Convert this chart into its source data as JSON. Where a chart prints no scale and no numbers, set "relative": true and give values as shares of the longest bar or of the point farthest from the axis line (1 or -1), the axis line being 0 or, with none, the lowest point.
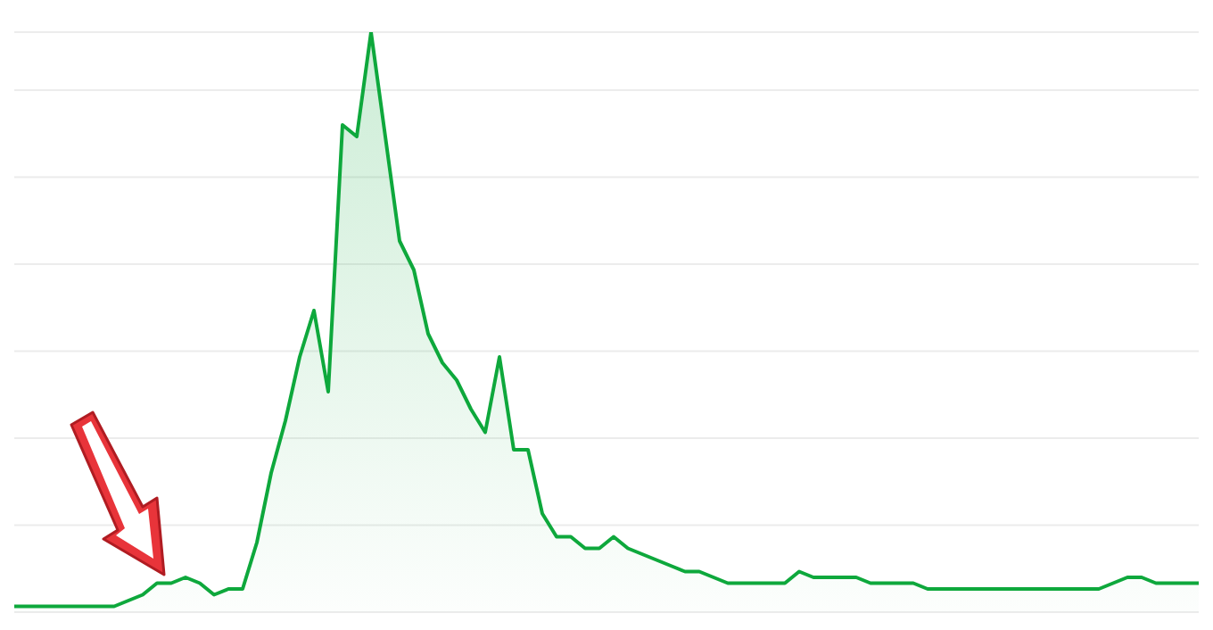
{
  "chart_data": {
    "type": "area",
    "relative": true,
    "grid": "y",
    "categories": [
      null,
      null,
      null,
      null,
      null,
      null,
      null,
      null,
      null,
      null,
      null,
      null,
      null,
      null,
      null,
      null,
      null,
      null,
      null,
      null,
      null,
      null,
      null,
      null,
      null,
      null,
      null,
      null,
      null,
      null,
      null,
      null,
      null,
      null,
      null,
      null,
      null,
      null,
      null,
      null,
      null,
      null,
      null,
      null,
      null,
      null,
      null,
      null,
      null,
      null,
      null,
      null,
      null,
      null,
      null,
      null,
      null,
      null,
      null,
      null,
      null,
      null,
      null,
      null,
      null,
      null,
      null,
      null,
      null,
      null,
      null,
      null,
      null,
      null,
      null,
      null,
      null,
      null,
      null,
      null,
      null,
      null,
      null,
      null
    ],
    "series": [
      {
        "color": "#0ea83c",
        "values": [
          0.01,
          0.01,
          0.01,
          0.01,
          0.01,
          0.01,
          0.01,
          0.01,
          0.02,
          0.03,
          0.05,
          0.05,
          0.06,
          0.05,
          0.03,
          0.04,
          0.04,
          0.12,
          0.24,
          0.33,
          0.44,
          0.52,
          0.38,
          0.84,
          0.82,
          1.0,
          0.82,
          0.64,
          0.59,
          0.48,
          0.43,
          0.4,
          0.35,
          0.31,
          0.44,
          0.28,
          0.28,
          0.17,
          0.13,
          0.13,
          0.11,
          0.11,
          0.13,
          0.11,
          0.1,
          0.09,
          0.08,
          0.07,
          0.07,
          0.06,
          0.05,
          0.05,
          0.05,
          0.05,
          0.05,
          0.07,
          0.06,
          0.06,
          0.06,
          0.06,
          0.05,
          0.05,
          0.05,
          0.05,
          0.04,
          0.04,
          0.04,
          0.04,
          0.04,
          0.04,
          0.04,
          0.04,
          0.04,
          0.04,
          0.04,
          0.04,
          0.04,
          0.05,
          0.06,
          0.06,
          0.05,
          0.05,
          0.05,
          0.05
        ]
      }
    ]
  }
}
